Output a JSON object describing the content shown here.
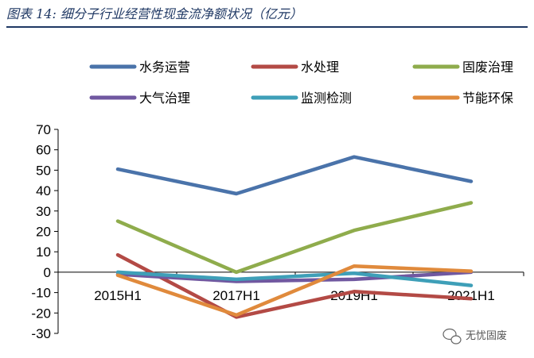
{
  "title": "图表 14:  细分子行业经营性现金流净额状况（亿元）",
  "watermark": "无忧固废",
  "chart_data": {
    "type": "line",
    "categories": [
      "2015H1",
      "2017H1",
      "2019H1",
      "2021H1"
    ],
    "ylim": [
      -30,
      70
    ],
    "yticks": [
      70,
      60,
      50,
      40,
      30,
      20,
      10,
      0,
      -10,
      -20,
      -30
    ],
    "grid": false,
    "legend_position": "top",
    "series": [
      {
        "name": "水务运营",
        "color": "#4a73aa",
        "values": [
          50.5,
          38.5,
          56.5,
          44.5
        ]
      },
      {
        "name": "水处理",
        "color": "#b34a45",
        "values": [
          8.5,
          -22,
          -9.5,
          -13
        ]
      },
      {
        "name": "固废治理",
        "color": "#8fac4c",
        "values": [
          25,
          0,
          20.5,
          34
        ]
      },
      {
        "name": "大气治理",
        "color": "#7058a0",
        "values": [
          -1,
          -4.5,
          -3.5,
          0
        ]
      },
      {
        "name": "监测检测",
        "color": "#3e9fb8",
        "values": [
          0,
          -3.5,
          -0.5,
          -6.5
        ]
      },
      {
        "name": "节能环保",
        "color": "#e08a3c",
        "values": [
          -1.5,
          -21,
          3,
          0.5
        ]
      }
    ]
  }
}
